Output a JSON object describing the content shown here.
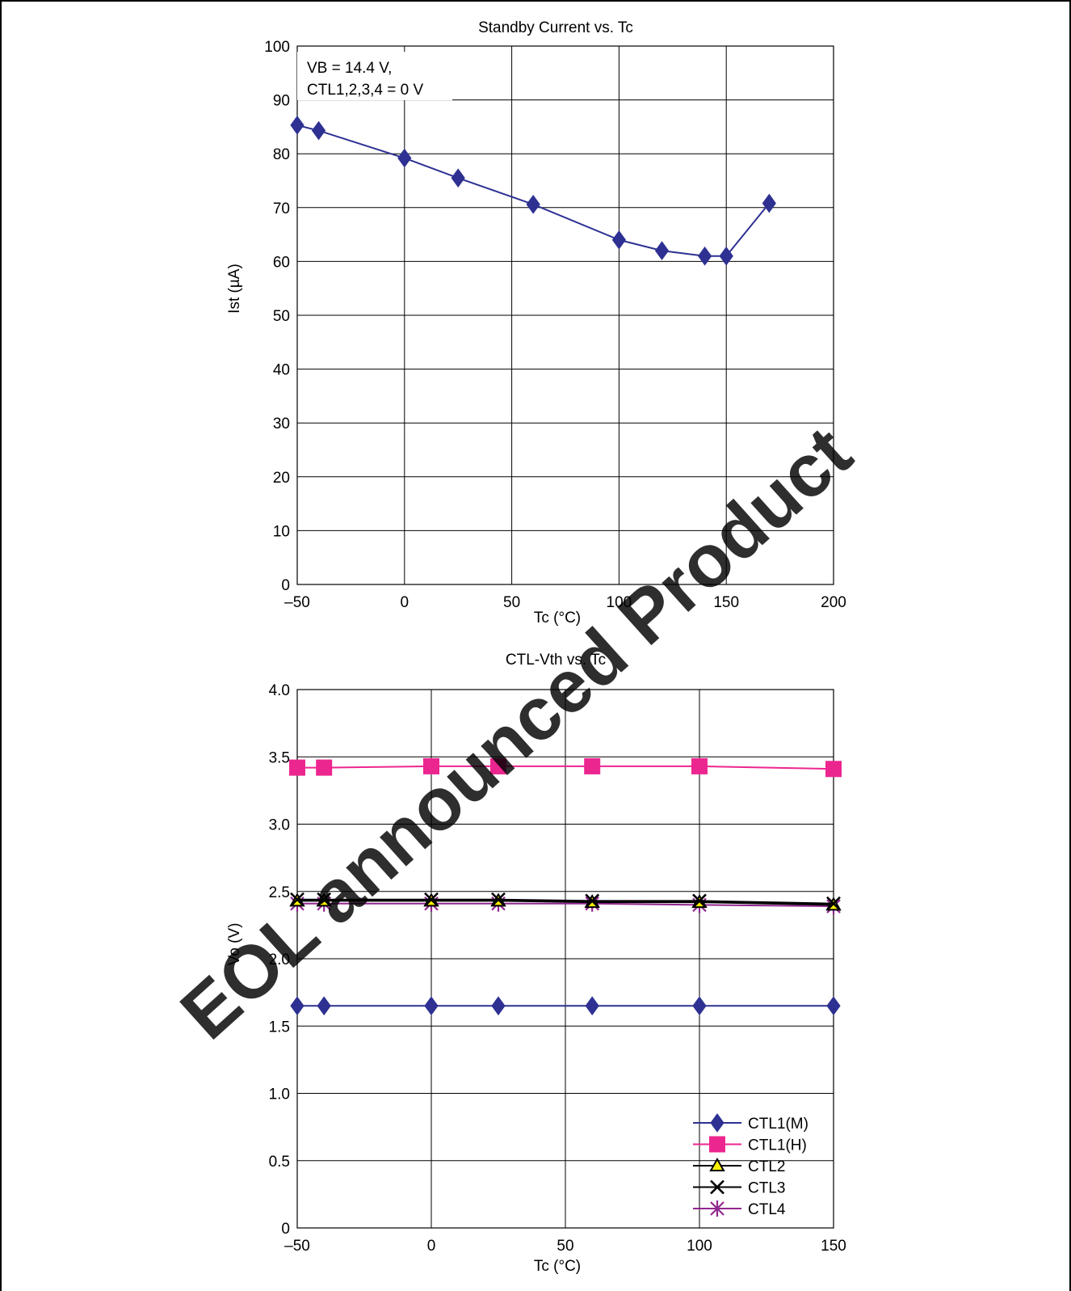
{
  "watermark": "EOL announced Product",
  "colors": {
    "ctl1m": "#2e3192",
    "ctl1h": "#ec268f",
    "ctl2": "#000000",
    "ctl3": "#000000",
    "ctl4": "#92278f",
    "marker_ctl2_fill": "#fff200",
    "watermark": "#ff4040"
  },
  "chart_data": [
    {
      "type": "line",
      "title": "Standby Current vs. Tc",
      "xlabel": "Tc   (°C)",
      "ylabel": "Ist   (µA)",
      "xlim": [
        -50,
        200
      ],
      "ylim": [
        0,
        100
      ],
      "xticks": [
        -50,
        0,
        50,
        100,
        150,
        200
      ],
      "yticks": [
        0,
        10,
        20,
        30,
        40,
        50,
        60,
        70,
        80,
        90,
        100
      ],
      "xtick_labels": [
        "–50",
        "0",
        "50",
        "100",
        "150",
        "200"
      ],
      "ytick_labels": [
        "0",
        "10",
        "20",
        "30",
        "40",
        "50",
        "60",
        "70",
        "80",
        "90",
        "100"
      ],
      "grid": true,
      "annotation": [
        "VB = 14.4 V,",
        "CTL1,2,3,4 = 0 V"
      ],
      "series": [
        {
          "marker": "diamond",
          "color": "#2e3192",
          "x": [
            -50,
            -40,
            0,
            25,
            60,
            100,
            120,
            140,
            150,
            170
          ],
          "y": [
            85.3,
            84.3,
            79.2,
            75.5,
            70.6,
            64.0,
            62.0,
            61.0,
            61.0,
            70.8
          ]
        }
      ]
    },
    {
      "type": "line",
      "title": "CTL-Vth vs. Tc",
      "xlabel": "Tc   (°C)",
      "ylabel": "Vo   (V)",
      "xlim": [
        -50,
        150
      ],
      "ylim": [
        0,
        4.0
      ],
      "xticks": [
        -50,
        0,
        50,
        100,
        150
      ],
      "yticks": [
        0,
        0.5,
        1.0,
        1.5,
        2.0,
        2.5,
        3.0,
        3.5,
        4.0
      ],
      "xtick_labels": [
        "–50",
        "0",
        "50",
        "100",
        "150"
      ],
      "ytick_labels": [
        "0",
        "0.5",
        "1.0",
        "1.5",
        "2.0",
        "2.5",
        "3.0",
        "3.5",
        "4.0"
      ],
      "grid": true,
      "legend": "bottom-right",
      "x": [
        -50,
        -40,
        0,
        25,
        60,
        100,
        150
      ],
      "series": [
        {
          "name": "CTL1(M)",
          "marker": "diamond",
          "color": "#2e3192",
          "values": [
            1.65,
            1.65,
            1.65,
            1.65,
            1.65,
            1.65,
            1.65
          ]
        },
        {
          "name": "CTL1(H)",
          "marker": "square",
          "color": "#ec268f",
          "values": [
            3.42,
            3.42,
            3.43,
            3.43,
            3.43,
            3.43,
            3.41
          ]
        },
        {
          "name": "CTL2",
          "marker": "triangle",
          "color": "#000000",
          "values": [
            2.43,
            2.43,
            2.43,
            2.43,
            2.42,
            2.42,
            2.4
          ]
        },
        {
          "name": "CTL3",
          "marker": "x",
          "color": "#000000",
          "values": [
            2.44,
            2.44,
            2.44,
            2.44,
            2.43,
            2.43,
            2.41
          ]
        },
        {
          "name": "CTL4",
          "marker": "asterisk",
          "color": "#92278f",
          "values": [
            2.41,
            2.41,
            2.41,
            2.41,
            2.41,
            2.4,
            2.39
          ]
        }
      ]
    }
  ]
}
